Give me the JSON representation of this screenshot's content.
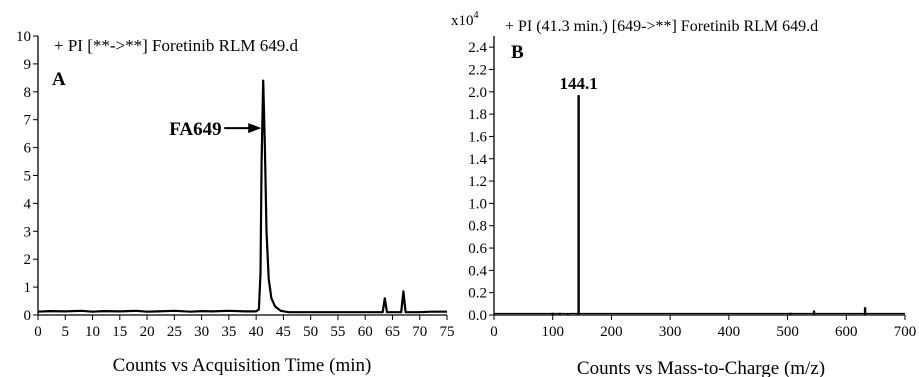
{
  "chart_data": [
    {
      "panel_label": "A",
      "type": "line",
      "title": "+ PI [**->**] Foretinib RLM 649.d",
      "xlabel": "Counts vs Acquisition Time (min)",
      "ylabel": "",
      "xlim": [
        0,
        75
      ],
      "ylim": [
        0,
        10
      ],
      "x_ticks": [
        "0",
        "5",
        "10",
        "15",
        "20",
        "25",
        "30",
        "35",
        "40",
        "45",
        "50",
        "55",
        "60",
        "65",
        "70",
        "75"
      ],
      "y_ticks": [
        "0",
        "1",
        "2",
        "3",
        "4",
        "5",
        "6",
        "7",
        "8",
        "9",
        "10"
      ],
      "series": [
        {
          "x": [
            0,
            2,
            5,
            8,
            10,
            12,
            15,
            18,
            20,
            22,
            25,
            28,
            30,
            32,
            35,
            38,
            40,
            40.5,
            40.8,
            41.0,
            41.3,
            41.6,
            41.9,
            42.3,
            42.8,
            43.5,
            44.5,
            46,
            50,
            55,
            60,
            63.2,
            63.6,
            64.0,
            64.4,
            66.6,
            67.0,
            67.4,
            70,
            72,
            75
          ],
          "values": [
            0.12,
            0.14,
            0.13,
            0.15,
            0.12,
            0.14,
            0.13,
            0.15,
            0.12,
            0.13,
            0.15,
            0.12,
            0.14,
            0.13,
            0.15,
            0.13,
            0.13,
            0.2,
            1.5,
            5.5,
            8.4,
            6.0,
            3.0,
            1.3,
            0.6,
            0.3,
            0.15,
            0.1,
            0.1,
            0.1,
            0.1,
            0.1,
            0.6,
            0.1,
            0.1,
            0.1,
            0.85,
            0.1,
            0.1,
            0.12,
            0.12
          ]
        }
      ],
      "annotations": [
        {
          "text": "FA649",
          "x": 41.3,
          "y": 6.7
        }
      ]
    },
    {
      "panel_label": "B",
      "type": "bar",
      "title": "+ PI (41.3 min.) [649->**] Foretinib RLM 649.d",
      "axis_multiplier": "x10",
      "axis_multiplier_exponent": "4",
      "xlabel": "Counts vs Mass-to-Charge (m/z)",
      "ylabel": "",
      "xlim": [
        0,
        700
      ],
      "ylim": [
        0,
        2.5
      ],
      "x_ticks": [
        "0",
        "100",
        "200",
        "300",
        "400",
        "500",
        "600",
        "700"
      ],
      "y_ticks": [
        "0.0",
        "0.2",
        "0.4",
        "0.6",
        "0.8",
        "1.0",
        "1.2",
        "1.4",
        "1.6",
        "1.8",
        "2.0",
        "2.2",
        "2.4"
      ],
      "x": [
        100,
        112,
        126,
        144.1,
        505,
        545,
        632
      ],
      "values": [
        0.02,
        0.02,
        0.015,
        1.97,
        0.02,
        0.04,
        0.07
      ],
      "annotations": [
        {
          "text": "144.1",
          "x": 144.1,
          "y": 1.97
        }
      ]
    }
  ]
}
